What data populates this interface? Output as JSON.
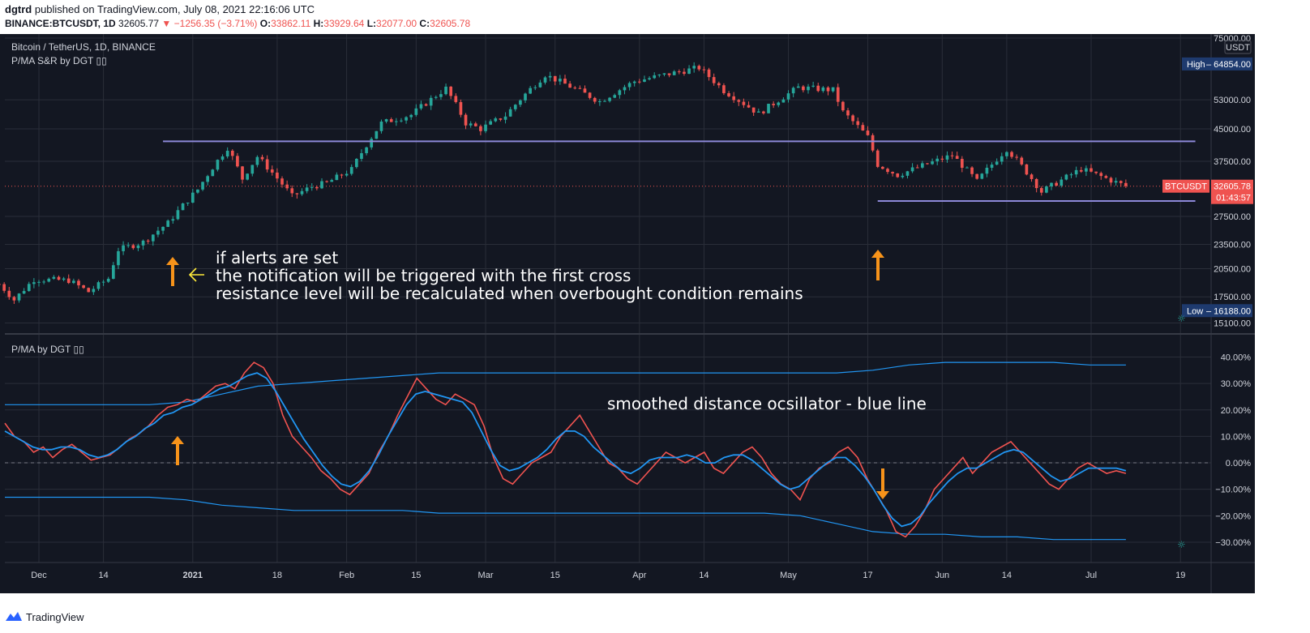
{
  "header": {
    "author": "dgtrd",
    "published_text": "published on TradingView.com, July 08, 2021 22:16:06 UTC",
    "symbol_line": "BINANCE:BTCUSDT, 1D",
    "last": "32605.77",
    "change_arrow": "▼",
    "change": "−1256.35 (−3.71%)",
    "o_label": "O:",
    "o_value": "33862.11",
    "h_label": "H:",
    "h_value": "33929.64",
    "l_label": "L:",
    "l_value": "32077.00",
    "c_label": "C:",
    "c_value": "32605.78"
  },
  "footer": {
    "brand": "TradingView"
  },
  "colors": {
    "background": "#131722",
    "grid": "#2a2e39",
    "up": "#26a69a",
    "down": "#ef5350",
    "sr_line": "#8c88d8",
    "oscillator_raw": "#f05350",
    "oscillator_smoothed": "#2196f3",
    "arrow": "#f7931a",
    "text": "#d1d4dc"
  },
  "chart_data": [
    {
      "type": "candlestick",
      "title": "Bitcoin / TetherUS, 1D, BINANCE",
      "indicator_label": "P/MA S&R by DGT ▯▯",
      "y_ticks": [
        "75000.00",
        "53000.00",
        "45000.00",
        "37500.00",
        "27500.00",
        "23500.00",
        "20500.00",
        "17500.00",
        "15100.00"
      ],
      "y_scale": "log",
      "y_range": [
        15000,
        75000
      ],
      "currency": "USDT",
      "high": {
        "label": "High",
        "value": "64854.00"
      },
      "low": {
        "label": "Low",
        "value": "16188.00"
      },
      "last_price": {
        "symbol": "BTCUSDT",
        "value": "32605.78",
        "countdown": "01:43:57"
      },
      "x_ticks": [
        "Dec",
        "14",
        "2021",
        "18",
        "Feb",
        "15",
        "Mar",
        "15",
        "Apr",
        "14",
        "May",
        "17",
        "Jun",
        "14",
        "Jul",
        "19"
      ],
      "date_range": [
        "2020-11-23",
        "2021-07-08"
      ],
      "anchors": [
        [
          "2020-11-23",
          18800
        ],
        [
          "2020-11-26",
          17200
        ],
        [
          "2020-11-30",
          19300
        ],
        [
          "2020-12-07",
          19200
        ],
        [
          "2020-12-11",
          18000
        ],
        [
          "2020-12-15",
          19400
        ],
        [
          "2020-12-17",
          22800
        ],
        [
          "2020-12-22",
          23800
        ],
        [
          "2020-12-27",
          26500
        ],
        [
          "2021-01-02",
          32000
        ],
        [
          "2021-01-08",
          40500
        ],
        [
          "2021-01-11",
          34000
        ],
        [
          "2021-01-14",
          38500
        ],
        [
          "2021-01-21",
          30800
        ],
        [
          "2021-01-25",
          32500
        ],
        [
          "2021-01-28",
          33200
        ],
        [
          "2021-02-02",
          35800
        ],
        [
          "2021-02-08",
          46500
        ],
        [
          "2021-02-14",
          48700
        ],
        [
          "2021-02-21",
          56500
        ],
        [
          "2021-02-25",
          46500
        ],
        [
          "2021-02-28",
          45000
        ],
        [
          "2021-03-05",
          48500
        ],
        [
          "2021-03-13",
          61000
        ],
        [
          "2021-03-24",
          52500
        ],
        [
          "2021-03-31",
          58800
        ],
        [
          "2021-04-13",
          63500
        ],
        [
          "2021-04-18",
          55800
        ],
        [
          "2021-04-25",
          49000
        ],
        [
          "2021-05-03",
          56800
        ],
        [
          "2021-05-10",
          56000
        ],
        [
          "2021-05-12",
          49500
        ],
        [
          "2021-05-17",
          43000
        ],
        [
          "2021-05-19",
          36800
        ],
        [
          "2021-05-23",
          34700
        ],
        [
          "2021-06-03",
          38800
        ],
        [
          "2021-06-08",
          33500
        ],
        [
          "2021-06-14",
          40200
        ],
        [
          "2021-06-21",
          31600
        ],
        [
          "2021-06-29",
          35900
        ],
        [
          "2021-07-08",
          32600
        ]
      ],
      "support_resistance": [
        {
          "name": "resistance",
          "start": "2020-12-26",
          "end": "2021-07-22",
          "value": 41950
        },
        {
          "name": "support",
          "start": "2021-05-19",
          "end": "2021-07-22",
          "value": 30000
        }
      ],
      "annotations": [
        {
          "text": "if alerts are set",
          "line": 1
        },
        {
          "text": "the notification will be triggered with the first cross",
          "line": 2
        },
        {
          "text": "resistance level will be recalculated when overbought condition remains",
          "line": 3
        }
      ]
    },
    {
      "type": "line",
      "indicator_label": "P/MA by DGT ▯▯",
      "annotation": "smoothed distance ocsillator - blue line",
      "y_range": [
        -34,
        42
      ],
      "y_ticks": [
        "40.00%",
        "30.00%",
        "20.00%",
        "10.00%",
        "0.00%",
        "−10.00%",
        "−20.00%",
        "−30.00%"
      ],
      "zero_line": 0,
      "series": [
        {
          "name": "distance",
          "values": [
            15,
            10,
            8,
            4,
            6,
            2,
            5,
            7,
            4,
            1,
            2,
            3,
            6,
            9,
            11,
            14,
            18,
            21,
            22,
            24,
            23,
            26,
            29,
            30,
            28,
            34,
            38,
            36,
            30,
            18,
            10,
            6,
            2,
            -3,
            -6,
            -10,
            -12,
            -8,
            -4,
            4,
            10,
            18,
            25,
            32,
            28,
            24,
            22,
            26,
            24,
            22,
            14,
            2,
            -6,
            -8,
            -4,
            0,
            2,
            4,
            10,
            14,
            18,
            12,
            6,
            0,
            -2,
            -6,
            -8,
            -4,
            0,
            4,
            2,
            0,
            2,
            4,
            -2,
            -4,
            0,
            4,
            6,
            2,
            -4,
            -8,
            -10,
            -14,
            -6,
            -2,
            0,
            4,
            6,
            2,
            -6,
            -12,
            -18,
            -26,
            -28,
            -24,
            -18,
            -10,
            -6,
            -2,
            2,
            -4,
            0,
            4,
            6,
            8,
            4,
            0,
            -4,
            -8,
            -10,
            -6,
            -2,
            0,
            -2,
            -4,
            -3,
            -4
          ],
          "note_is_sampled": true
        },
        {
          "name": "smoothed",
          "values": [
            12,
            10,
            8,
            6,
            5,
            5,
            6,
            6,
            5,
            3,
            2,
            3,
            5,
            8,
            10,
            13,
            15,
            18,
            19,
            21,
            22,
            24,
            26,
            28,
            29,
            31,
            33,
            34,
            32,
            27,
            21,
            15,
            9,
            4,
            -1,
            -5,
            -8,
            -9,
            -7,
            -3,
            3,
            10,
            16,
            22,
            26,
            27,
            26,
            25,
            24,
            23,
            19,
            12,
            5,
            -1,
            -3,
            -2,
            0,
            2,
            5,
            9,
            12,
            12,
            10,
            6,
            3,
            0,
            -3,
            -4,
            -2,
            1,
            2,
            2,
            2,
            3,
            2,
            0,
            0,
            2,
            3,
            3,
            1,
            -2,
            -5,
            -8,
            -10,
            -9,
            -6,
            -3,
            0,
            2,
            2,
            -1,
            -5,
            -10,
            -16,
            -21,
            -24,
            -23,
            -20,
            -15,
            -11,
            -7,
            -4,
            -2,
            -2,
            0,
            2,
            4,
            5,
            4,
            1,
            -2,
            -5,
            -7,
            -6,
            -4,
            -2,
            -2,
            -2,
            -2,
            -3
          ]
        },
        {
          "name": "upper_band",
          "values": [
            22,
            22,
            22,
            22,
            22,
            23,
            26,
            29,
            30,
            31,
            32,
            33,
            34,
            34,
            34,
            34,
            34,
            34,
            34,
            34,
            34,
            34,
            34,
            34,
            35,
            37,
            38,
            38,
            38,
            38,
            37,
            37
          ]
        },
        {
          "name": "lower_band",
          "values": [
            -13,
            -13,
            -13,
            -13,
            -13,
            -14,
            -16,
            -17,
            -18,
            -18,
            -18,
            -18,
            -19,
            -19,
            -19,
            -19,
            -19,
            -19,
            -19,
            -19,
            -19,
            -19,
            -20,
            -23,
            -26,
            -27,
            -27,
            -28,
            -28,
            -29,
            -29,
            -29
          ]
        }
      ],
      "band_keys": {
        "upper": "upper_band",
        "lower": "lower_band"
      }
    }
  ]
}
